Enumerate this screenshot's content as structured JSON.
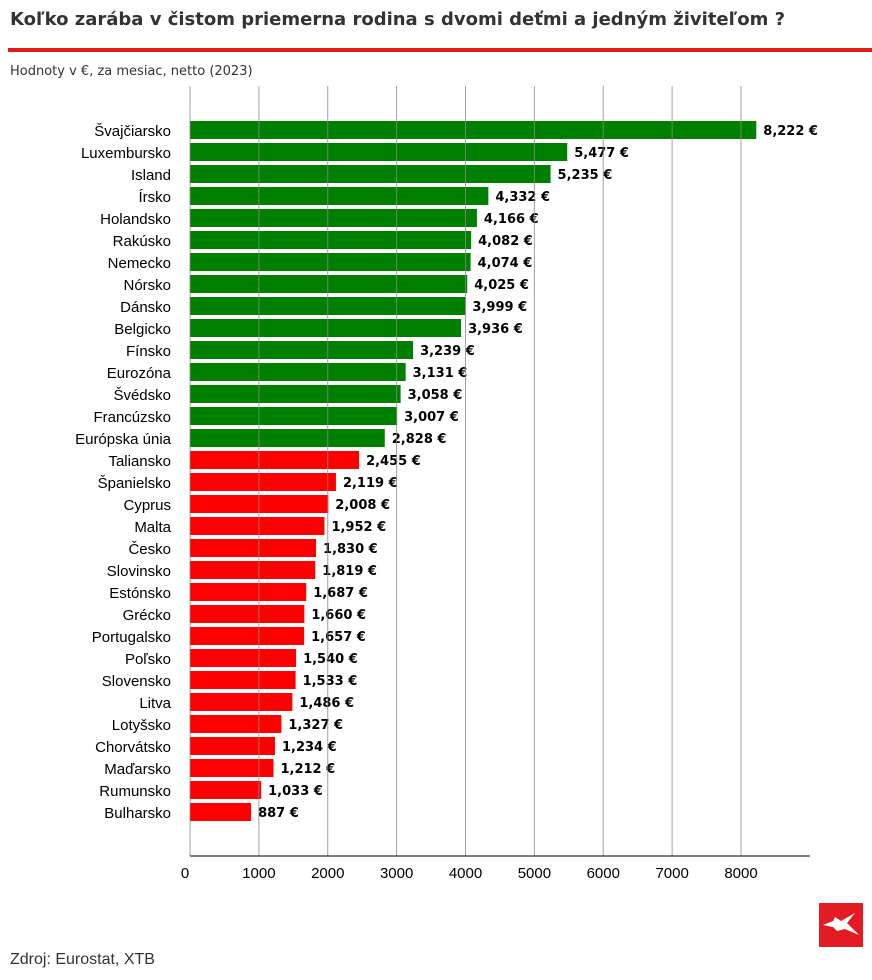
{
  "header": {
    "title": "Koľko zarába v čistom priemerna rodina s dvomi deťmi a jedným živiteľom ?",
    "subtitle": "Hodnoty v €, za mesiac, netto (2023)"
  },
  "footer": {
    "source": "Zdroj: Eurostat, XTB",
    "logo": "XTB logo"
  },
  "colors": {
    "accent": "#e31b17",
    "above": "#008000",
    "below": "#ff0000",
    "grid": "#888888"
  },
  "chart_data": {
    "type": "bar",
    "orientation": "horizontal",
    "title": "Koľko zarába v čistom priemerna rodina s dvomi deťmi a jedným živiteľom ?",
    "xlabel": "",
    "ylabel": "",
    "xlim": [
      0,
      9000
    ],
    "x_ticks": [
      0,
      1000,
      2000,
      3000,
      4000,
      5000,
      6000,
      7000,
      8000
    ],
    "grid": "vertical",
    "categories": [
      "Švajčiarsko",
      "Luxembursko",
      "Island",
      "Írsko",
      "Holandsko",
      "Rakúsko",
      "Nemecko",
      "Nórsko",
      "Dánsko",
      "Belgicko",
      "Fínsko",
      "Eurozóna",
      "Švédsko",
      "Francúzsko",
      "Európska únia",
      "Taliansko",
      "Španielsko",
      "Cyprus",
      "Malta",
      "Česko",
      "Slovinsko",
      "Estónsko",
      "Grécko",
      "Portugalsko",
      "Poľsko",
      "Slovensko",
      "Litva",
      "Lotyšsko",
      "Chorvátsko",
      "Maďarsko",
      "Rumunsko",
      "Bulharsko"
    ],
    "values": [
      8222,
      5477,
      5235,
      4332,
      4166,
      4082,
      4074,
      4025,
      3999,
      3936,
      3239,
      3131,
      3058,
      3007,
      2828,
      2455,
      2119,
      2008,
      1952,
      1830,
      1819,
      1687,
      1660,
      1657,
      1540,
      1533,
      1486,
      1327,
      1234,
      1212,
      1033,
      887
    ],
    "value_labels": [
      "8,222 €",
      "5,477 €",
      "5,235 €",
      "4,332 €",
      "4,166 €",
      "4,082 €",
      "4,074 €",
      "4,025 €",
      "3,999 €",
      "3,936 €",
      "3,239 €",
      "3,131 €",
      "3,058 €",
      "3,007 €",
      "2,828 €",
      "2,455 €",
      "2,119 €",
      "2,008 €",
      "1,952 €",
      "1,830 €",
      "1,819 €",
      "1,687 €",
      "1,660 €",
      "1,657 €",
      "1,540 €",
      "1,533 €",
      "1,486 €",
      "1,327 €",
      "1,234 €",
      "1,212 €",
      "1,033 €",
      "887 €"
    ],
    "color_rule": "green for values ≥ EU average (Európska únia), red below"
  }
}
